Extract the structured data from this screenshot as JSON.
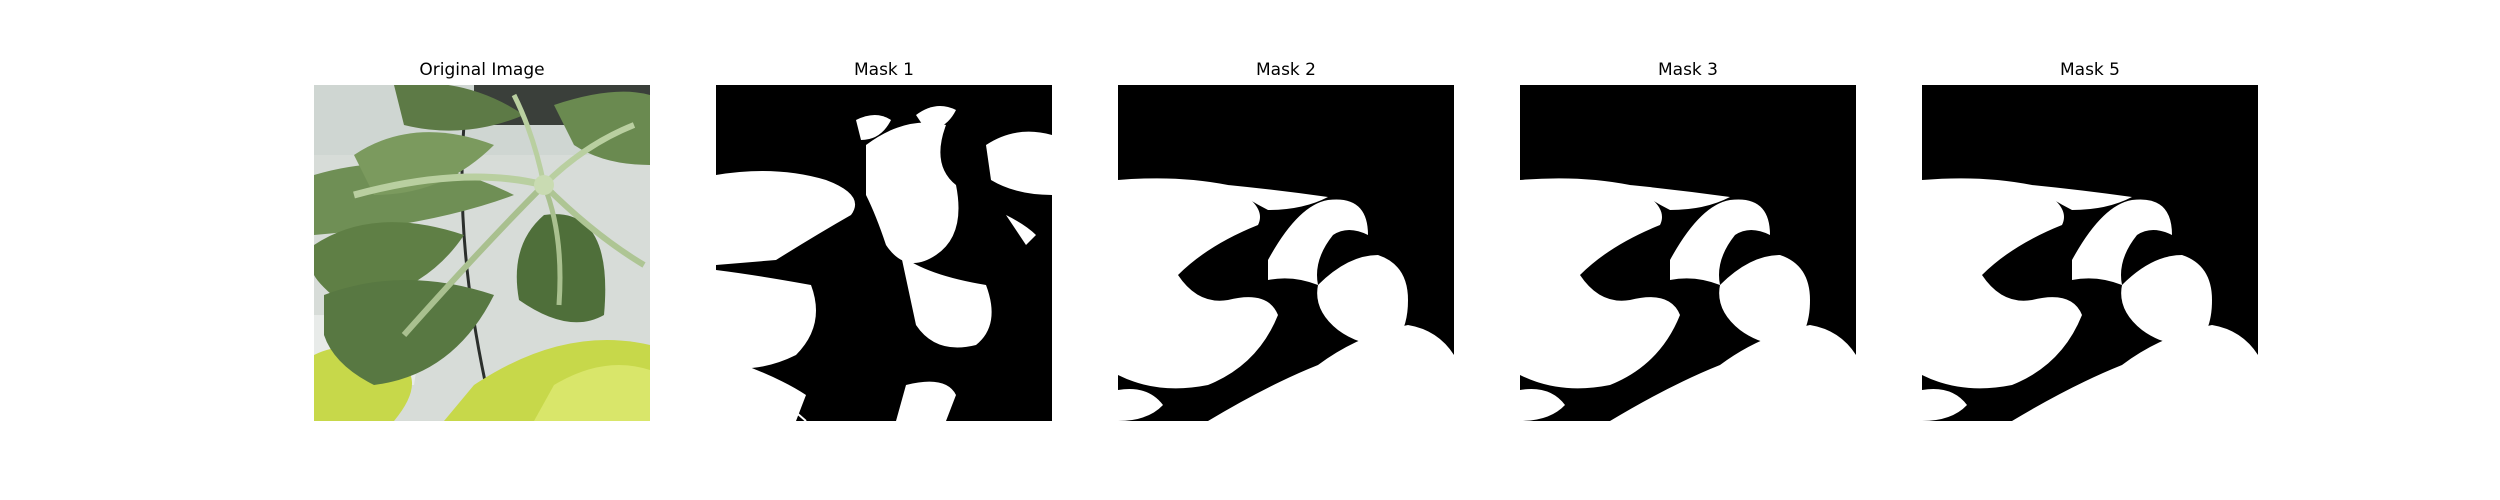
{
  "panels": [
    {
      "title": "Original Image"
    },
    {
      "title": "Mask 1"
    },
    {
      "title": "Mask 2"
    },
    {
      "title": "Mask 3"
    },
    {
      "title": "Mask 5"
    }
  ],
  "colors": {
    "background": "#ffffff",
    "mask_background": "#000000",
    "mask_foreground": "#ffffff",
    "leaf_dark": "#4f6f3a",
    "leaf_mid": "#6f8f55",
    "leaf_light": "#9cb582",
    "stem": "#b9cfa0",
    "photo_background": "#d7dcd8",
    "lime": "#c7d84a"
  }
}
